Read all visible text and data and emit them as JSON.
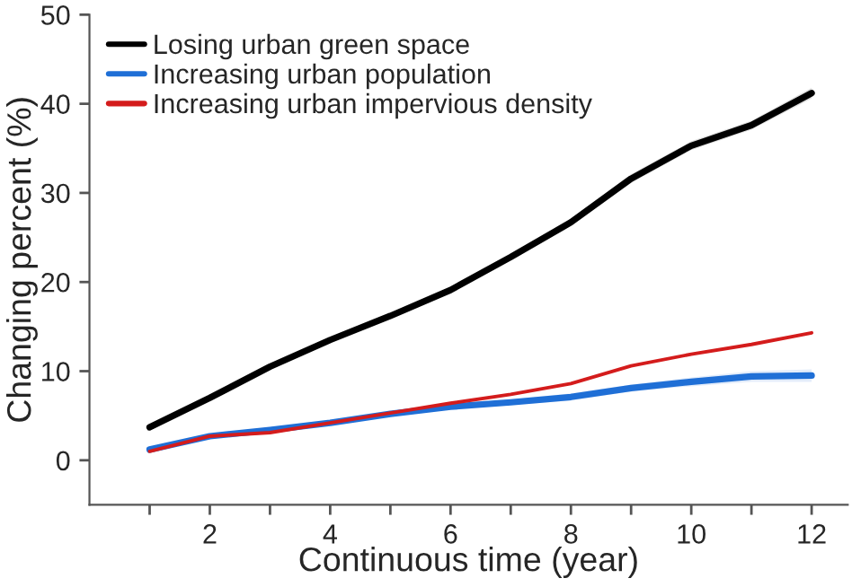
{
  "chart_data": {
    "type": "line",
    "xlabel": "Continuous time (year)",
    "ylabel": "Changing percent (%)",
    "x": [
      1,
      2,
      3,
      4,
      5,
      6,
      7,
      8,
      9,
      10,
      11,
      12
    ],
    "series": [
      {
        "name": "Losing urban green space",
        "color": "#000000",
        "values": [
          3.7,
          7.0,
          10.5,
          13.5,
          16.2,
          19.1,
          22.8,
          26.7,
          31.6,
          35.3,
          37.6,
          41.2
        ],
        "lower": [
          3.4,
          6.7,
          10.2,
          13.2,
          15.9,
          18.8,
          22.5,
          26.3,
          31.1,
          34.8,
          37.1,
          40.6
        ],
        "upper": [
          4.0,
          7.3,
          10.8,
          13.8,
          16.5,
          19.4,
          23.1,
          27.1,
          32.1,
          35.8,
          38.1,
          41.8
        ]
      },
      {
        "name": "Increasing urban population",
        "color": "#1f6fd6",
        "values": [
          1.2,
          2.7,
          3.4,
          4.2,
          5.2,
          6.0,
          6.5,
          7.1,
          8.1,
          8.8,
          9.4,
          9.5
        ],
        "lower": [
          1.0,
          2.5,
          3.2,
          4.0,
          5.0,
          5.8,
          6.2,
          6.7,
          7.7,
          8.3,
          8.8,
          8.8
        ],
        "upper": [
          1.4,
          2.9,
          3.6,
          4.4,
          5.4,
          6.2,
          6.8,
          7.5,
          8.5,
          9.3,
          10.0,
          10.2
        ]
      },
      {
        "name": "Increasing urban impervious density",
        "color": "#d41c1c",
        "values": [
          1.0,
          2.7,
          3.1,
          4.2,
          5.3,
          6.4,
          7.4,
          8.6,
          10.6,
          11.9,
          13.0,
          14.3
        ]
      }
    ],
    "xlim": [
      0,
      12.6
    ],
    "ylim": [
      -5,
      50
    ],
    "xticks": [
      {
        "value": 1,
        "label": null
      },
      2,
      {
        "value": 3,
        "label": null
      },
      4,
      {
        "value": 5,
        "label": null
      },
      6,
      {
        "value": 7,
        "label": null
      },
      8,
      {
        "value": 9,
        "label": null
      },
      10,
      {
        "value": 11,
        "label": null
      },
      12
    ],
    "yticks": [
      0,
      10,
      20,
      30,
      40,
      50
    ],
    "legend": "top left",
    "grid": false,
    "marker": "none",
    "line_style": "solid"
  }
}
